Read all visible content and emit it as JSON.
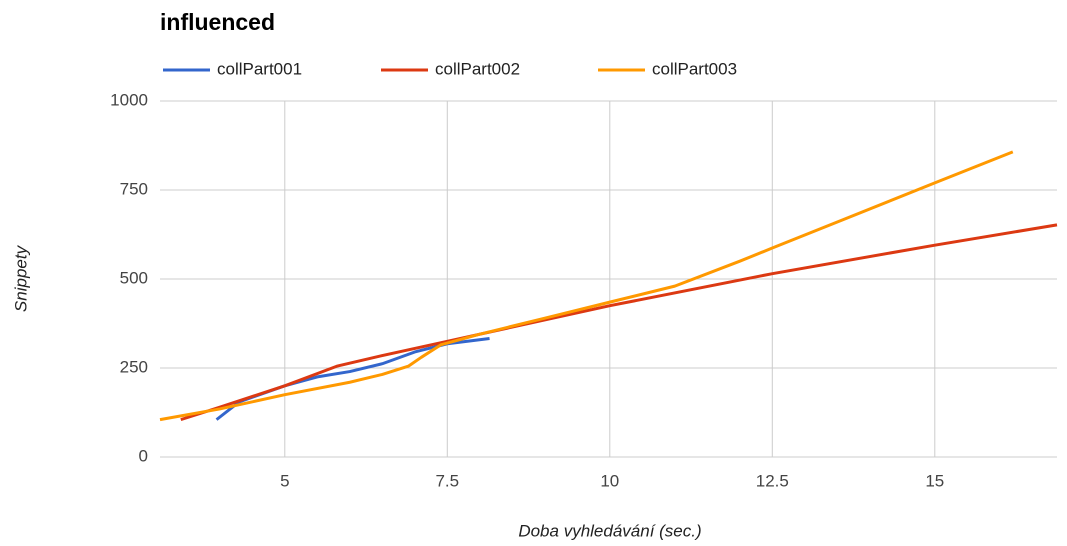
{
  "chart_data": {
    "type": "line",
    "title": "influenced",
    "x_label": "Doba vyhledávání (sec.)",
    "y_label": "Snippety",
    "xlim": [
      3.08,
      16.88
    ],
    "ylim": [
      0,
      1000
    ],
    "xticks": [
      5,
      7.5,
      10,
      12.5,
      15
    ],
    "yticks": [
      0,
      250,
      500,
      750,
      1000
    ],
    "grid": true,
    "legend": "top",
    "series": [
      {
        "name": "collPart001",
        "color": "#3366cc",
        "x": [
          3.95,
          4.3,
          5,
          5.5,
          6,
          6.5,
          7,
          7.5,
          8.15
        ],
        "values": [
          105,
          155,
          200,
          225,
          240,
          262,
          295,
          318,
          333
        ]
      },
      {
        "name": "collPart002",
        "color": "#dc3912",
        "x": [
          3.4,
          4,
          5,
          5.8,
          6.5,
          7.5,
          8.5,
          10,
          12.5,
          15,
          16.88
        ],
        "values": [
          105,
          140,
          200,
          255,
          285,
          325,
          365,
          425,
          515,
          595,
          652
        ]
      },
      {
        "name": "collPart003",
        "color": "#ff9900",
        "x": [
          3.08,
          4,
          5,
          6,
          6.5,
          6.9,
          7.1,
          7.4,
          8,
          9,
          10,
          11,
          12,
          12.5,
          13.5,
          15,
          16.2
        ],
        "values": [
          105,
          135,
          175,
          210,
          232,
          255,
          280,
          315,
          345,
          390,
          435,
          480,
          550,
          587,
          660,
          770,
          857
        ]
      }
    ]
  }
}
